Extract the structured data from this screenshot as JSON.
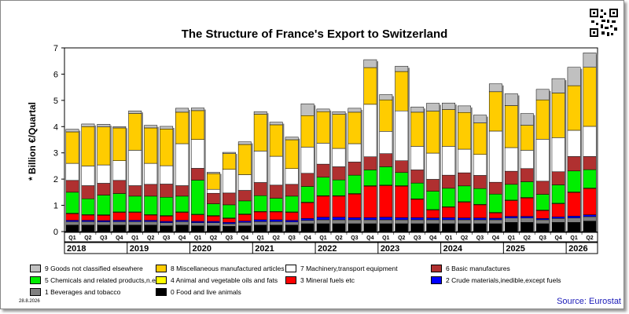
{
  "chart_data": {
    "type": "bar",
    "stacked": true,
    "title": "The Structure of France's Export to Switzerland",
    "ylabel": "* Billion €/Quartal",
    "ylim": [
      0,
      7
    ],
    "yticks": [
      0,
      1,
      2,
      3,
      4,
      5,
      6,
      7
    ],
    "years": [
      "2018",
      "2019",
      "2020",
      "2021",
      "2022",
      "2023",
      "2024",
      "2025",
      "2026"
    ],
    "categories": [
      "Q1",
      "Q2",
      "Q3",
      "Q4",
      "Q1",
      "Q2",
      "Q3",
      "Q4",
      "Q1",
      "Q2",
      "Q3",
      "Q4",
      "Q1",
      "Q2",
      "Q3",
      "Q4",
      "Q1",
      "Q2",
      "Q3",
      "Q4",
      "Q1",
      "Q2",
      "Q3",
      "Q4",
      "Q1",
      "Q2",
      "Q3",
      "Q4",
      "Q1",
      "Q2",
      "Q3",
      "Q4",
      "Q1",
      "Q2"
    ],
    "series": [
      {
        "name": "0 Food and live animals",
        "color": "#000000",
        "values": [
          0.25,
          0.25,
          0.25,
          0.25,
          0.25,
          0.25,
          0.22,
          0.25,
          0.22,
          0.22,
          0.2,
          0.22,
          0.25,
          0.25,
          0.25,
          0.3,
          0.3,
          0.3,
          0.3,
          0.3,
          0.3,
          0.3,
          0.3,
          0.3,
          0.3,
          0.3,
          0.3,
          0.3,
          0.35,
          0.35,
          0.3,
          0.35,
          0.35,
          0.4
        ]
      },
      {
        "name": "1 Beverages and tobacco",
        "color": "#808080",
        "values": [
          0.13,
          0.13,
          0.12,
          0.13,
          0.13,
          0.13,
          0.12,
          0.13,
          0.12,
          0.12,
          0.1,
          0.13,
          0.13,
          0.13,
          0.12,
          0.13,
          0.15,
          0.15,
          0.15,
          0.15,
          0.15,
          0.15,
          0.15,
          0.15,
          0.15,
          0.15,
          0.15,
          0.15,
          0.17,
          0.17,
          0.15,
          0.15,
          0.17,
          0.17
        ]
      },
      {
        "name": "2 Crude materials,inedible,except fuels",
        "color": "#0000ff",
        "values": [
          0.05,
          0.05,
          0.05,
          0.05,
          0.05,
          0.05,
          0.05,
          0.05,
          0.05,
          0.05,
          0.05,
          0.05,
          0.07,
          0.07,
          0.06,
          0.07,
          0.1,
          0.1,
          0.08,
          0.08,
          0.1,
          0.08,
          0.08,
          0.07,
          0.08,
          0.07,
          0.07,
          0.06,
          0.06,
          0.06,
          0.05,
          0.06,
          0.07,
          0.07
        ]
      },
      {
        "name": "3 Mineral fuels etc",
        "color": "#ff0000",
        "values": [
          0.25,
          0.2,
          0.2,
          0.3,
          0.3,
          0.2,
          0.2,
          0.3,
          0.25,
          0.2,
          0.15,
          0.25,
          0.3,
          0.3,
          0.3,
          0.6,
          0.8,
          0.8,
          0.9,
          1.2,
          1.2,
          1.2,
          0.7,
          0.3,
          0.4,
          0.6,
          0.5,
          0.2,
          0.6,
          0.7,
          0.3,
          0.5,
          0.9,
          1.0
        ]
      },
      {
        "name": "4 Animal and vegetable oils and fats",
        "color": "#ffff00",
        "values": [
          0.02,
          0.02,
          0.02,
          0.02,
          0.02,
          0.02,
          0.02,
          0.02,
          0.02,
          0.02,
          0.02,
          0.02,
          0.02,
          0.02,
          0.02,
          0.02,
          0.02,
          0.02,
          0.02,
          0.02,
          0.02,
          0.02,
          0.02,
          0.02,
          0.02,
          0.02,
          0.02,
          0.02,
          0.02,
          0.02,
          0.02,
          0.02,
          0.02,
          0.02
        ]
      },
      {
        "name": "5 Chemicals and related products,n.e.s.",
        "color": "#00ee00",
        "values": [
          0.8,
          0.6,
          0.75,
          0.7,
          0.6,
          0.7,
          0.7,
          0.6,
          1.3,
          0.45,
          0.5,
          0.5,
          0.6,
          0.5,
          0.6,
          0.6,
          0.7,
          0.6,
          0.7,
          0.6,
          0.7,
          0.5,
          0.6,
          0.7,
          0.7,
          0.6,
          0.6,
          0.7,
          0.6,
          0.6,
          0.6,
          0.7,
          0.8,
          0.7
        ]
      },
      {
        "name": "6 Basic manufactures",
        "color": "#b03030",
        "values": [
          0.45,
          0.5,
          0.45,
          0.5,
          0.4,
          0.45,
          0.5,
          0.4,
          0.45,
          0.4,
          0.45,
          0.4,
          0.5,
          0.5,
          0.45,
          0.5,
          0.5,
          0.5,
          0.5,
          0.5,
          0.5,
          0.45,
          0.5,
          0.45,
          0.5,
          0.5,
          0.5,
          0.45,
          0.5,
          0.5,
          0.5,
          0.5,
          0.55,
          0.5
        ]
      },
      {
        "name": "7 Machinery,transport equipment",
        "color": "#ffffff",
        "values": [
          0.65,
          0.75,
          0.7,
          0.75,
          1.35,
          0.8,
          0.7,
          1.6,
          1.1,
          0.15,
          0.9,
          0.6,
          1.2,
          1.1,
          0.6,
          1.0,
          0.8,
          0.7,
          0.7,
          2.0,
          0.85,
          1.9,
          0.9,
          1.0,
          1.1,
          0.9,
          0.8,
          1.95,
          0.9,
          0.7,
          1.6,
          1.3,
          1.0,
          1.15
        ]
      },
      {
        "name": "8 Miscellaneous manufactured articles",
        "color": "#ffcc00",
        "values": [
          1.2,
          1.5,
          1.45,
          1.25,
          1.4,
          1.35,
          1.4,
          1.2,
          1.1,
          0.6,
          0.6,
          1.15,
          1.4,
          1.2,
          1.1,
          1.2,
          1.2,
          1.3,
          1.2,
          1.4,
          1.2,
          1.5,
          1.3,
          1.6,
          1.4,
          1.4,
          1.2,
          1.5,
          1.6,
          0.95,
          1.5,
          1.7,
          1.7,
          2.25
        ]
      },
      {
        "name": "9 Goods not classified elsewhere",
        "color": "#c0c0c0",
        "values": [
          0.1,
          0.1,
          0.1,
          0.05,
          0.1,
          0.1,
          0.1,
          0.15,
          0.1,
          0.05,
          0.05,
          0.1,
          0.1,
          0.1,
          0.1,
          0.45,
          0.1,
          0.1,
          0.15,
          0.3,
          0.2,
          0.2,
          0.2,
          0.3,
          0.25,
          0.25,
          0.3,
          0.3,
          0.45,
          0.45,
          0.4,
          0.55,
          0.7,
          0.55
        ]
      }
    ],
    "legend": {
      "placement": "bottom"
    },
    "grid": false
  },
  "source_label": "Source: Eurostat",
  "date_label": "28.8.2026"
}
